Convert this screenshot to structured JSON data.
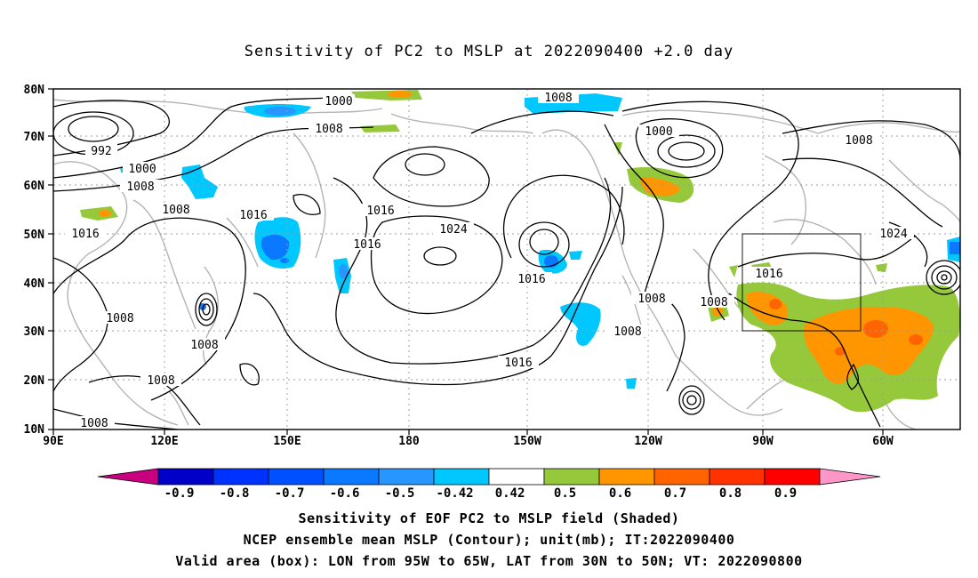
{
  "title": "Sensitivity of PC2 to MSLP at 2022090400 +2.0 day",
  "map": {
    "lat_labels": [
      "80N",
      "70N",
      "60N",
      "50N",
      "40N",
      "30N",
      "20N",
      "10N"
    ],
    "lon_labels": [
      "90E",
      "120E",
      "150E",
      "180",
      "150W",
      "120W",
      "90W",
      "60W"
    ],
    "valid_box": {
      "lon_range": [
        "95W",
        "65W"
      ],
      "lat_range": [
        "30N",
        "50N"
      ]
    },
    "contour_labels": [
      "1000",
      "1008",
      "1008",
      "992",
      "1000",
      "1008",
      "1008",
      "1016",
      "1016",
      "1016",
      "1024",
      "1016",
      "1016",
      "1008",
      "1008",
      "1008",
      "1008",
      "1016",
      "1008",
      "1016",
      "1008",
      "1000",
      "1008",
      "1024",
      "1008"
    ]
  },
  "colorbar": {
    "labels": [
      "-0.9",
      "-0.8",
      "-0.7",
      "-0.6",
      "-0.5",
      "-0.42",
      "0.42",
      "0.5",
      "0.6",
      "0.7",
      "0.8",
      "0.9"
    ],
    "colors": [
      "#c8007f",
      "#0000c8",
      "#0032ff",
      "#0050ff",
      "#0a78ff",
      "#2896ff",
      "#00c8ff",
      "#ffffff",
      "#96c83c",
      "#ff9600",
      "#ff6400",
      "#ff3200",
      "#ff0000",
      "#ff96c8"
    ]
  },
  "footer": {
    "line1": "Sensitivity of EOF PC2 to MSLP field (Shaded)",
    "line2": "NCEP ensemble mean MSLP (Contour); unit(mb); IT:2022090400",
    "line3": "Valid area (box): LON from 95W to 65W, LAT from 30N to 50N; VT: 2022090800"
  }
}
